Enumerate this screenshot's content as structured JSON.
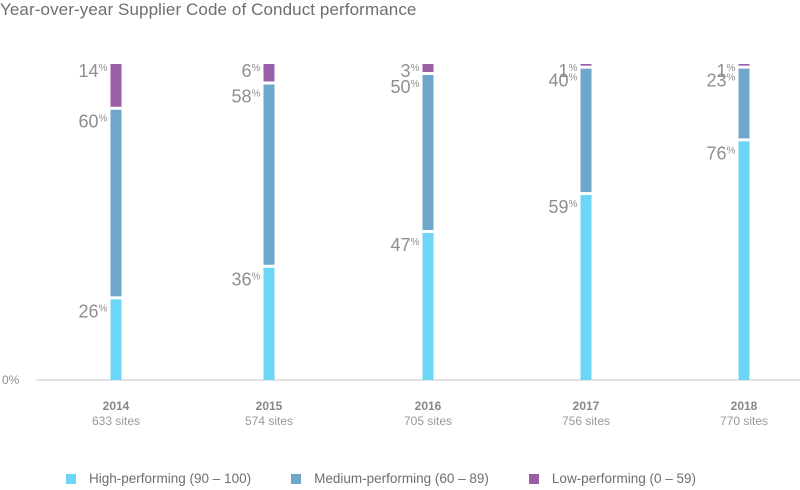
{
  "chart_data": {
    "type": "bar",
    "stacked": true,
    "title": "Year-over-year Supplier Code of Conduct performance",
    "xlabel": "",
    "ylabel": "",
    "ylim": [
      0,
      100
    ],
    "y_tick_labels": [
      "0%"
    ],
    "grid": false,
    "legend_position": "bottom",
    "categories": [
      "2014",
      "2015",
      "2016",
      "2017",
      "2018"
    ],
    "category_sublabels": [
      "633 sites",
      "574 sites",
      "705 sites",
      "756 sites",
      "770 sites"
    ],
    "series": [
      {
        "name": "High-performing (90 – 100)",
        "color": "#6dd5f6",
        "values": [
          26,
          36,
          47,
          59,
          76
        ]
      },
      {
        "name": "Medium-performing (60 – 89)",
        "color": "#6ea7c9",
        "values": [
          60,
          58,
          50,
          40,
          23
        ]
      },
      {
        "name": "Low-performing (0 – 59)",
        "color": "#9a5fa6",
        "values": [
          14,
          6,
          3,
          1,
          1
        ]
      }
    ],
    "value_suffix": "%"
  }
}
